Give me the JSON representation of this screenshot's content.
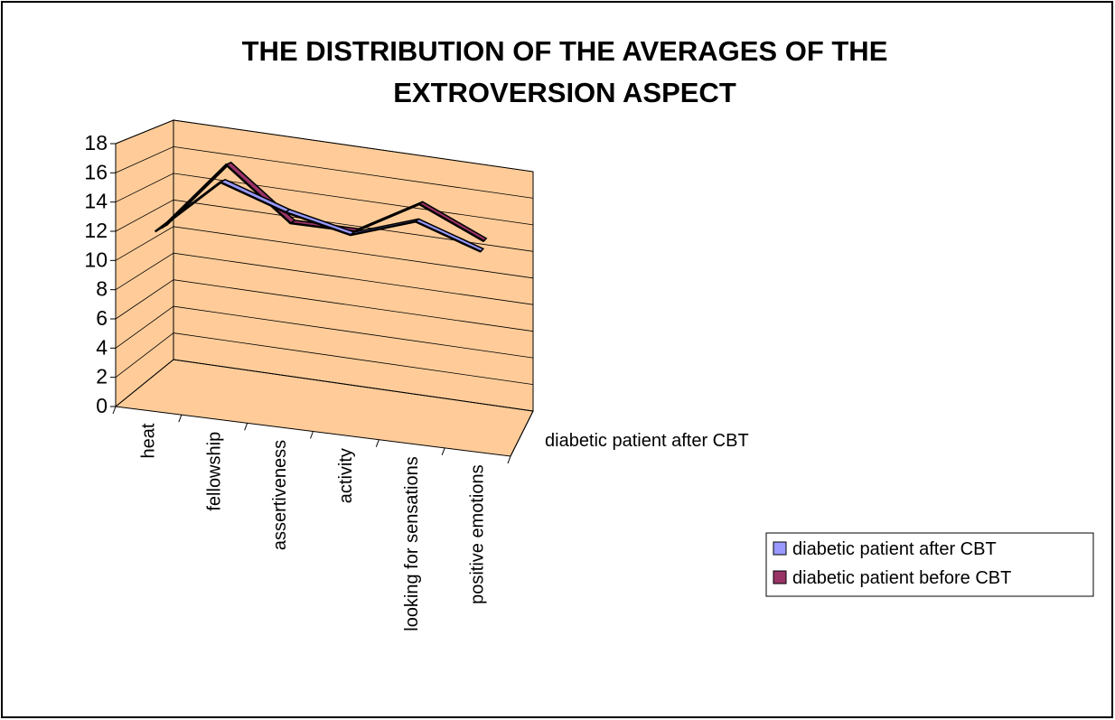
{
  "chart_data": {
    "type": "line3d",
    "title": "THE DISTRIBUTION OF THE AVERAGES OF THE EXTROVERSION ASPECT",
    "categories": [
      "heat",
      "fellowship",
      "assertiveness",
      "activity",
      "looking for sensations",
      "positive emotions"
    ],
    "series": [
      {
        "name": "diabetic patient after CBT",
        "color": "#9999ff",
        "values": [
          12,
          16,
          14.5,
          13.5,
          15,
          13.5
        ]
      },
      {
        "name": "diabetic patient before CBT",
        "color": "#993366",
        "values": [
          12,
          17,
          13.5,
          13.5,
          16,
          14
        ]
      }
    ],
    "ylim": [
      0,
      18
    ],
    "yticks": [
      0,
      2,
      4,
      6,
      8,
      10,
      12,
      14,
      16,
      18
    ],
    "grid": true,
    "legend": "right"
  }
}
